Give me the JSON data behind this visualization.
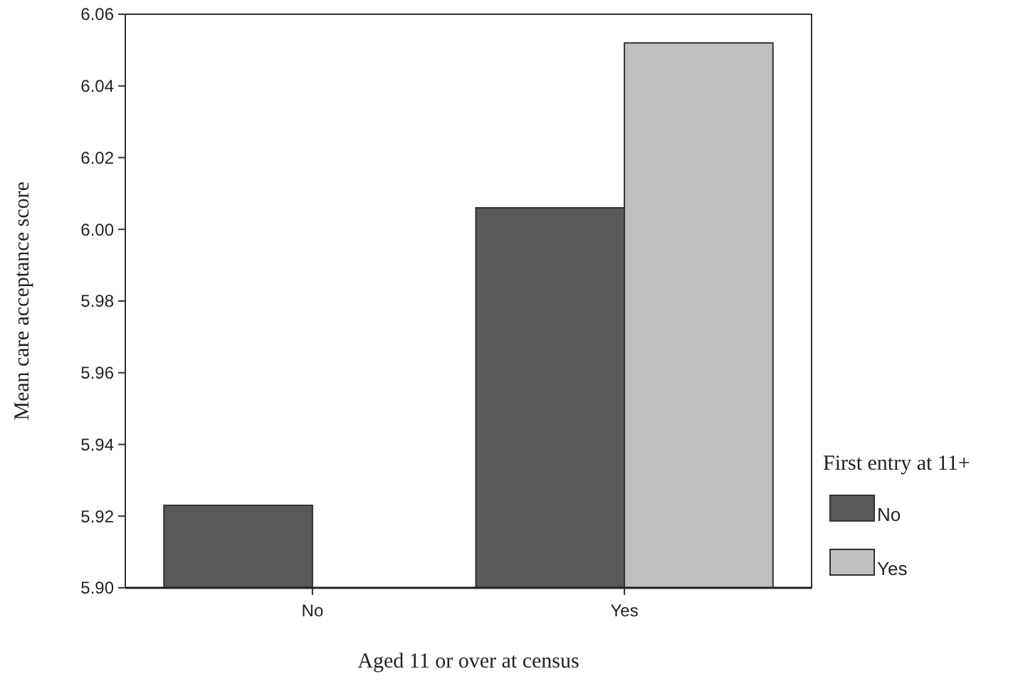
{
  "chart_data": {
    "type": "bar",
    "xlabel": "Aged 11 or over at census",
    "ylabel": "Mean care acceptance score",
    "legend_title": "First entry at 11+",
    "categories": [
      "No",
      "Yes"
    ],
    "series": [
      {
        "name": "No",
        "color": "#58595b",
        "values": [
          5.923,
          6.006
        ]
      },
      {
        "name": "Yes",
        "color": "#bfc0c2",
        "values": [
          null,
          6.052
        ]
      }
    ],
    "ylim": [
      5.9,
      6.06
    ],
    "yticks": [
      {
        "value": 5.9,
        "label": "5.90"
      },
      {
        "value": 5.92,
        "label": "5.92"
      },
      {
        "value": 5.94,
        "label": "5.94"
      },
      {
        "value": 5.96,
        "label": "5.96"
      },
      {
        "value": 5.98,
        "label": "5.98"
      },
      {
        "value": 6.0,
        "label": "6.00"
      },
      {
        "value": 6.02,
        "label": "6.02"
      },
      {
        "value": 6.04,
        "label": "6.04"
      },
      {
        "value": 6.06,
        "label": "6.06"
      }
    ],
    "grid": false,
    "legend": "right"
  }
}
